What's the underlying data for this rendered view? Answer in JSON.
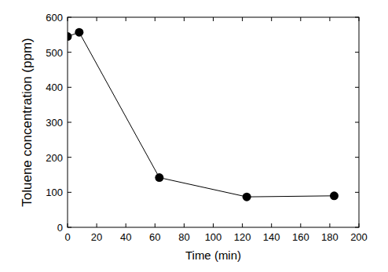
{
  "chart_data": {
    "type": "line",
    "x_label": "Time (min)",
    "y_label": "Toluene concentration (ppm)",
    "x": [
      0,
      8,
      63,
      123,
      183
    ],
    "series": [
      {
        "values": [
          545,
          557,
          142,
          87,
          90
        ],
        "color": "#000000",
        "marker": "circle"
      }
    ],
    "xlim": [
      0,
      200
    ],
    "xticks": [
      0,
      20,
      40,
      60,
      80,
      100,
      120,
      140,
      160,
      180,
      200
    ],
    "ylim": [
      0,
      600
    ],
    "yticks": [
      0,
      100,
      200,
      300,
      400,
      500,
      600
    ]
  }
}
